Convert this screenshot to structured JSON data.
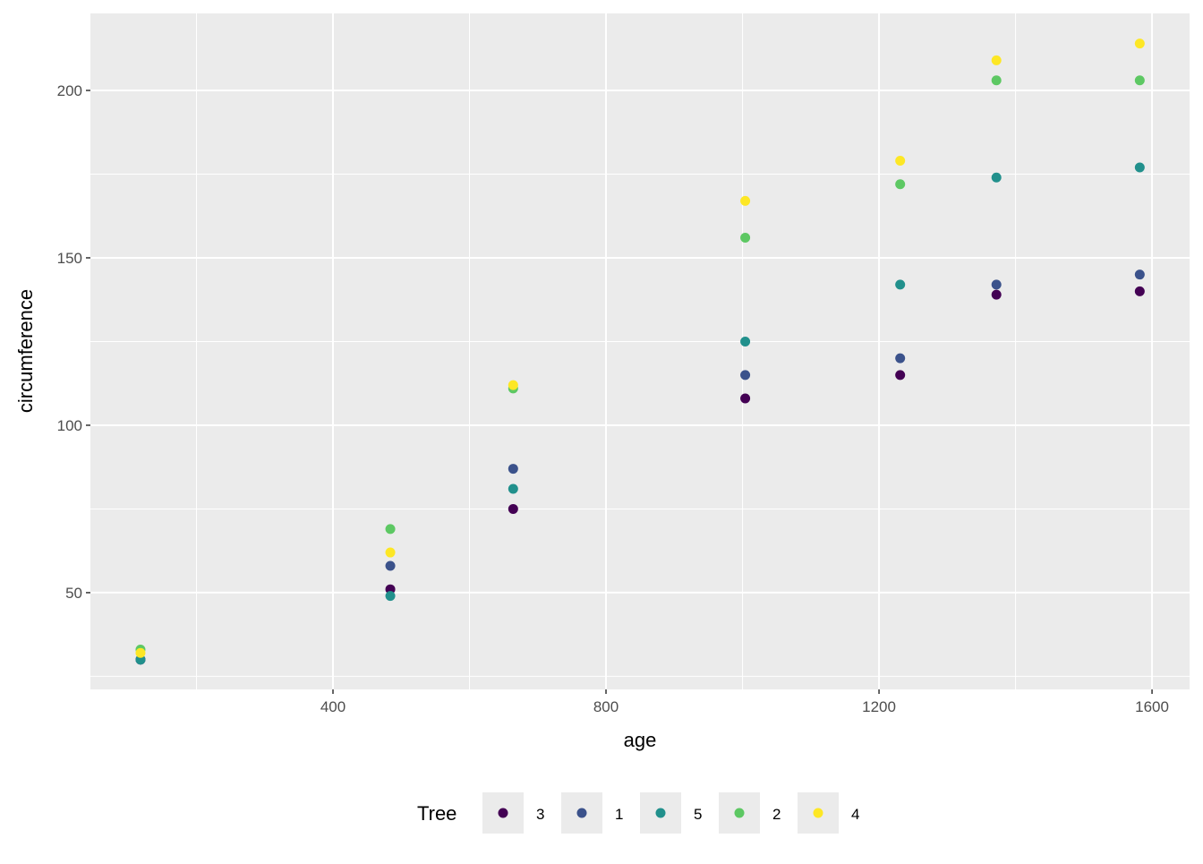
{
  "chart_data": {
    "type": "scatter",
    "title": "",
    "xlabel": "age",
    "ylabel": "circumference",
    "xlim": [
      44.6,
      1655
    ],
    "ylim": [
      21.1,
      223
    ],
    "x_ticks": [
      400,
      800,
      1200,
      1600
    ],
    "x_tick_labels": [
      "400",
      "800",
      "1200",
      "1600"
    ],
    "x_minor": [
      200,
      600,
      1000,
      1400
    ],
    "y_ticks": [
      50,
      100,
      150,
      200
    ],
    "y_tick_labels": [
      "50",
      "100",
      "150",
      "200"
    ],
    "y_minor": [
      25,
      75,
      125,
      175
    ],
    "grid": true,
    "legend": {
      "title": "Tree",
      "placement": "bottom"
    },
    "x": [
      118,
      484,
      664,
      1004,
      1231,
      1372,
      1582
    ],
    "series": [
      {
        "name": "3",
        "color": "#440154",
        "values": [
          30,
          51,
          75,
          108,
          115,
          139,
          140
        ]
      },
      {
        "name": "1",
        "color": "#3B528B",
        "values": [
          30,
          58,
          87,
          115,
          120,
          142,
          145
        ]
      },
      {
        "name": "5",
        "color": "#21908C",
        "values": [
          30,
          49,
          81,
          125,
          142,
          174,
          177
        ]
      },
      {
        "name": "2",
        "color": "#5DC863",
        "values": [
          33,
          69,
          111,
          156,
          172,
          203,
          203
        ]
      },
      {
        "name": "4",
        "color": "#FDE725",
        "values": [
          32,
          62,
          112,
          167,
          179,
          209,
          214
        ]
      }
    ]
  }
}
